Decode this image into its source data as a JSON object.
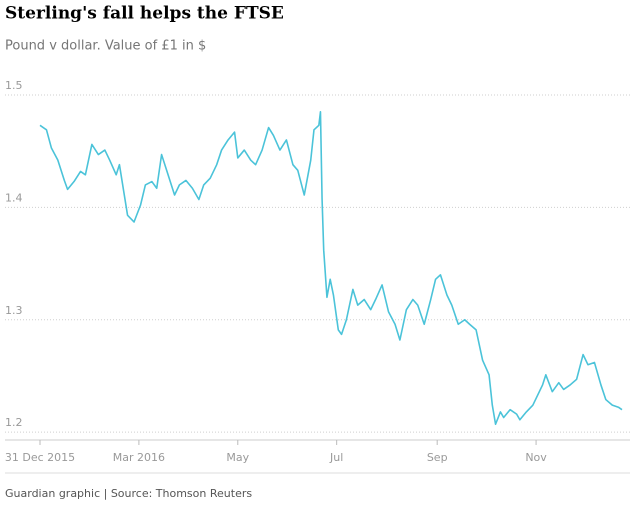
{
  "chart_data": {
    "type": "line",
    "title": "Sterling's fall helps the FTSE",
    "subtitle": "Pound v dollar. Value of £1 in $",
    "source": "Guardian graphic | Source: Thomson Reuters",
    "x": [
      0,
      4,
      7,
      11,
      15,
      17,
      21,
      25,
      28,
      32,
      36,
      40,
      43,
      47,
      49,
      52,
      54,
      58,
      62,
      65,
      69,
      72,
      75,
      79,
      83,
      86,
      90,
      94,
      98,
      101,
      105,
      109,
      112,
      116,
      120,
      122,
      126,
      130,
      133,
      137,
      141,
      144,
      148,
      152,
      156,
      159,
      163,
      167,
      169,
      172,
      173,
      174,
      175,
      177,
      179,
      181,
      184,
      186,
      189,
      193,
      196,
      200,
      204,
      207,
      211,
      215,
      219,
      222,
      226,
      230,
      233,
      237,
      241,
      244,
      247,
      251,
      254,
      258,
      262,
      265,
      269,
      273,
      277,
      279,
      281,
      284,
      286,
      290,
      294,
      296,
      300,
      304,
      307,
      310,
      312,
      316,
      320,
      323,
      327,
      331,
      335,
      338,
      342,
      346,
      349,
      353,
      357,
      359
    ],
    "series": [
      {
        "color": "#4bc3d9",
        "values": [
          1.473,
          1.469,
          1.453,
          1.442,
          1.424,
          1.416,
          1.423,
          1.432,
          1.429,
          1.456,
          1.447,
          1.451,
          1.442,
          1.429,
          1.438,
          1.411,
          1.393,
          1.387,
          1.402,
          1.42,
          1.423,
          1.417,
          1.447,
          1.429,
          1.411,
          1.42,
          1.424,
          1.417,
          1.407,
          1.42,
          1.426,
          1.438,
          1.451,
          1.46,
          1.467,
          1.444,
          1.451,
          1.442,
          1.438,
          1.451,
          1.471,
          1.464,
          1.451,
          1.46,
          1.438,
          1.433,
          1.411,
          1.442,
          1.469,
          1.473,
          1.485,
          1.407,
          1.362,
          1.32,
          1.336,
          1.322,
          1.291,
          1.287,
          1.3,
          1.327,
          1.313,
          1.318,
          1.309,
          1.318,
          1.331,
          1.307,
          1.296,
          1.282,
          1.309,
          1.318,
          1.313,
          1.296,
          1.318,
          1.336,
          1.34,
          1.322,
          1.313,
          1.296,
          1.3,
          1.296,
          1.291,
          1.264,
          1.251,
          1.224,
          1.207,
          1.218,
          1.213,
          1.22,
          1.216,
          1.211,
          1.218,
          1.224,
          1.233,
          1.242,
          1.251,
          1.236,
          1.244,
          1.238,
          1.242,
          1.247,
          1.269,
          1.26,
          1.262,
          1.242,
          1.229,
          1.224,
          1.222,
          1.22
        ]
      }
    ],
    "xlim": [
      0,
      359
    ],
    "xticks": [
      {
        "value": 0,
        "label": "31 Dec 2015"
      },
      {
        "value": 61,
        "label": "Mar 2016"
      },
      {
        "value": 122,
        "label": "May"
      },
      {
        "value": 183,
        "label": "Jul"
      },
      {
        "value": 245,
        "label": "Sep"
      },
      {
        "value": 306,
        "label": "Nov"
      }
    ],
    "ylim": [
      1.193,
      1.5
    ],
    "yticks": [
      1.2,
      1.3,
      1.4,
      1.5
    ],
    "grid": true
  }
}
